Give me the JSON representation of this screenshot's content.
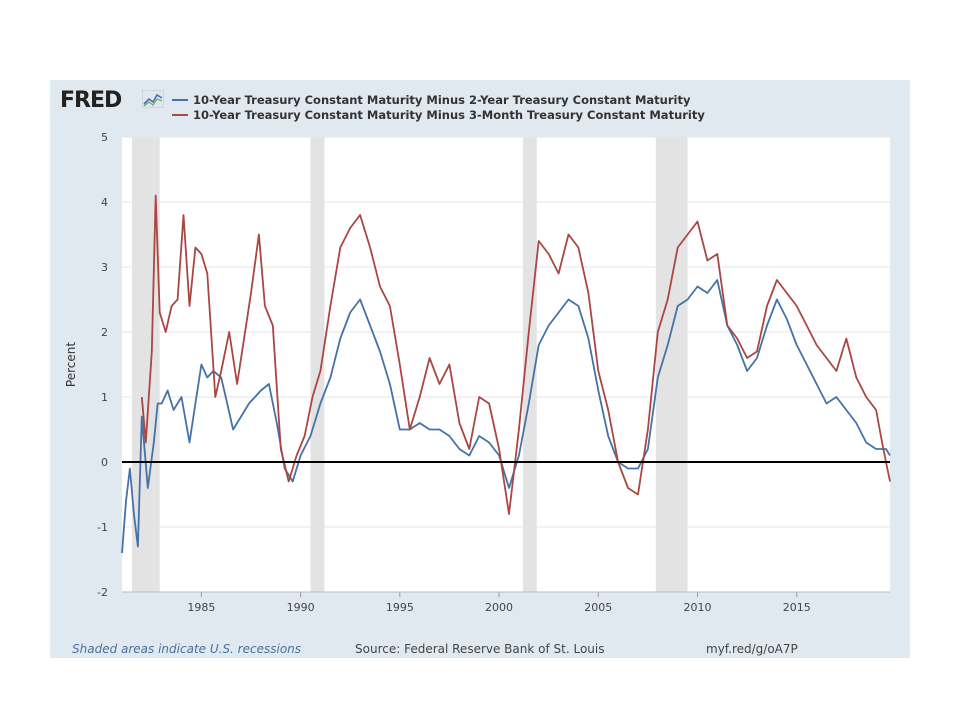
{
  "brand": {
    "logo_text": "FRED"
  },
  "colors": {
    "series1": "#4572a7",
    "series2": "#aa4643",
    "frame": "#e1e9f0",
    "recession": "#e3e3e3",
    "zero_line": "#000000",
    "note": "#4a6f9e"
  },
  "footer": {
    "note": "Shaded areas indicate U.S. recessions",
    "source": "Source: Federal Reserve Bank of St. Louis",
    "link": "myf.red/g/oA7P"
  },
  "chart_data": {
    "type": "line",
    "title": "",
    "xlabel": "",
    "ylabel": "Percent",
    "xlim": [
      1981.0,
      2019.7
    ],
    "ylim": [
      -2,
      5
    ],
    "grid": true,
    "legend_position": "top-left",
    "y_ticks": [
      5,
      4,
      3,
      2,
      1,
      0,
      -1,
      -2
    ],
    "x_ticks": [
      1985,
      1990,
      1995,
      2000,
      2005,
      2010,
      2015
    ],
    "recessions": [
      [
        1981.5,
        1982.9
      ],
      [
        1990.5,
        1991.2
      ],
      [
        2001.2,
        2001.9
      ],
      [
        2007.9,
        2009.5
      ]
    ],
    "series": [
      {
        "name": "10-Year Treasury Constant Maturity Minus 2-Year Treasury Constant Maturity",
        "color": "#4572a7",
        "x": [
          1981.0,
          1981.2,
          1981.4,
          1981.6,
          1981.8,
          1982.0,
          1982.3,
          1982.6,
          1982.8,
          1983.0,
          1983.3,
          1983.6,
          1984.0,
          1984.4,
          1984.7,
          1985.0,
          1985.3,
          1985.6,
          1986.0,
          1986.3,
          1986.6,
          1987.0,
          1987.4,
          1987.7,
          1988.0,
          1988.4,
          1988.8,
          1989.2,
          1989.6,
          1990.0,
          1990.5,
          1991.0,
          1991.5,
          1992.0,
          1992.5,
          1993.0,
          1993.5,
          1994.0,
          1994.5,
          1995.0,
          1995.5,
          1996.0,
          1996.5,
          1997.0,
          1997.5,
          1998.0,
          1998.5,
          1999.0,
          1999.5,
          2000.0,
          2000.5,
          2001.0,
          2001.5,
          2002.0,
          2002.5,
          2003.0,
          2003.5,
          2004.0,
          2004.5,
          2005.0,
          2005.5,
          2006.0,
          2006.5,
          2007.0,
          2007.5,
          2008.0,
          2008.5,
          2009.0,
          2009.5,
          2010.0,
          2010.5,
          2011.0,
          2011.5,
          2012.0,
          2012.5,
          2013.0,
          2013.5,
          2014.0,
          2014.5,
          2015.0,
          2015.5,
          2016.0,
          2016.5,
          2017.0,
          2017.5,
          2018.0,
          2018.5,
          2019.0,
          2019.5,
          2019.7
        ],
        "values": [
          -1.4,
          -0.6,
          -0.1,
          -0.8,
          -1.3,
          0.7,
          -0.4,
          0.3,
          0.9,
          0.9,
          1.1,
          0.8,
          1.0,
          0.3,
          0.9,
          1.5,
          1.3,
          1.4,
          1.3,
          0.9,
          0.5,
          0.7,
          0.9,
          1.0,
          1.1,
          1.2,
          0.6,
          -0.1,
          -0.3,
          0.1,
          0.4,
          0.9,
          1.3,
          1.9,
          2.3,
          2.5,
          2.1,
          1.7,
          1.2,
          0.5,
          0.5,
          0.6,
          0.5,
          0.5,
          0.4,
          0.2,
          0.1,
          0.4,
          0.3,
          0.1,
          -0.4,
          0.1,
          0.9,
          1.8,
          2.1,
          2.3,
          2.5,
          2.4,
          1.9,
          1.1,
          0.4,
          0.0,
          -0.1,
          -0.1,
          0.2,
          1.3,
          1.8,
          2.4,
          2.5,
          2.7,
          2.6,
          2.8,
          2.1,
          1.8,
          1.4,
          1.6,
          2.1,
          2.5,
          2.2,
          1.8,
          1.5,
          1.2,
          0.9,
          1.0,
          0.8,
          0.6,
          0.3,
          0.2,
          0.2,
          0.1
        ]
      },
      {
        "name": "10-Year Treasury Constant Maturity Minus 3-Month Treasury Constant Maturity",
        "color": "#aa4643",
        "x": [
          1982.0,
          1982.2,
          1982.5,
          1982.7,
          1982.9,
          1983.2,
          1983.5,
          1983.8,
          1984.1,
          1984.4,
          1984.7,
          1985.0,
          1985.3,
          1985.7,
          1986.0,
          1986.4,
          1986.8,
          1987.1,
          1987.5,
          1987.9,
          1988.2,
          1988.6,
          1989.0,
          1989.4,
          1989.8,
          1990.2,
          1990.6,
          1991.0,
          1991.5,
          1992.0,
          1992.5,
          1993.0,
          1993.5,
          1994.0,
          1994.5,
          1995.0,
          1995.5,
          1996.0,
          1996.5,
          1997.0,
          1997.5,
          1998.0,
          1998.5,
          1999.0,
          1999.5,
          2000.0,
          2000.5,
          2001.0,
          2001.5,
          2002.0,
          2002.5,
          2003.0,
          2003.5,
          2004.0,
          2004.5,
          2005.0,
          2005.5,
          2006.0,
          2006.5,
          2007.0,
          2007.5,
          2008.0,
          2008.5,
          2009.0,
          2009.5,
          2010.0,
          2010.5,
          2011.0,
          2011.5,
          2012.0,
          2012.5,
          2013.0,
          2013.5,
          2014.0,
          2014.5,
          2015.0,
          2015.5,
          2016.0,
          2016.5,
          2017.0,
          2017.5,
          2018.0,
          2018.5,
          2019.0,
          2019.3,
          2019.5,
          2019.7
        ],
        "values": [
          1.0,
          0.3,
          1.7,
          4.1,
          2.3,
          2.0,
          2.4,
          2.5,
          3.8,
          2.4,
          3.3,
          3.2,
          2.9,
          1.0,
          1.4,
          2.0,
          1.2,
          1.8,
          2.6,
          3.5,
          2.4,
          2.1,
          0.2,
          -0.3,
          0.1,
          0.4,
          1.0,
          1.4,
          2.4,
          3.3,
          3.6,
          3.8,
          3.3,
          2.7,
          2.4,
          1.5,
          0.5,
          1.0,
          1.6,
          1.2,
          1.5,
          0.6,
          0.2,
          1.0,
          0.9,
          0.2,
          -0.8,
          0.5,
          2.0,
          3.4,
          3.2,
          2.9,
          3.5,
          3.3,
          2.6,
          1.4,
          0.8,
          0.0,
          -0.4,
          -0.5,
          0.5,
          2.0,
          2.5,
          3.3,
          3.5,
          3.7,
          3.1,
          3.2,
          2.1,
          1.9,
          1.6,
          1.7,
          2.4,
          2.8,
          2.6,
          2.4,
          2.1,
          1.8,
          1.6,
          1.4,
          1.9,
          1.3,
          1.0,
          0.8,
          0.3,
          0.0,
          -0.3
        ]
      }
    ]
  }
}
